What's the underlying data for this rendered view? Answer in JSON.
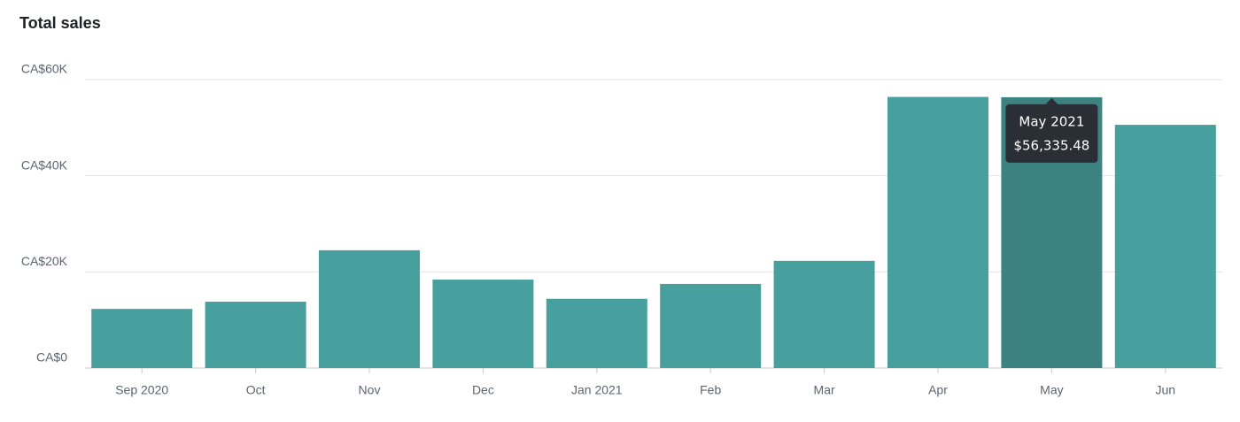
{
  "chart_data": {
    "type": "bar",
    "title": "Total sales",
    "categories": [
      "Sep 2020",
      "Oct",
      "Nov",
      "Dec",
      "Jan 2021",
      "Feb",
      "Mar",
      "Apr",
      "May",
      "Jun"
    ],
    "values": [
      12300,
      13800,
      24500,
      18400,
      14400,
      17500,
      22300,
      56400,
      56335.48,
      50600
    ],
    "value_labels": [
      null,
      null,
      null,
      null,
      null,
      null,
      null,
      null,
      "$56,335.48",
      null
    ],
    "tooltip_title": "May 2021",
    "color": "#48a09e",
    "highlight_color": "#3b8280",
    "ylim": [
      0,
      60000
    ],
    "yticks": [
      {
        "value": 0,
        "label": "CA$0"
      },
      {
        "value": 20000,
        "label": "CA$20K"
      },
      {
        "value": 40000,
        "label": "CA$40K"
      },
      {
        "value": 60000,
        "label": "CA$60K"
      }
    ],
    "grid": true
  }
}
